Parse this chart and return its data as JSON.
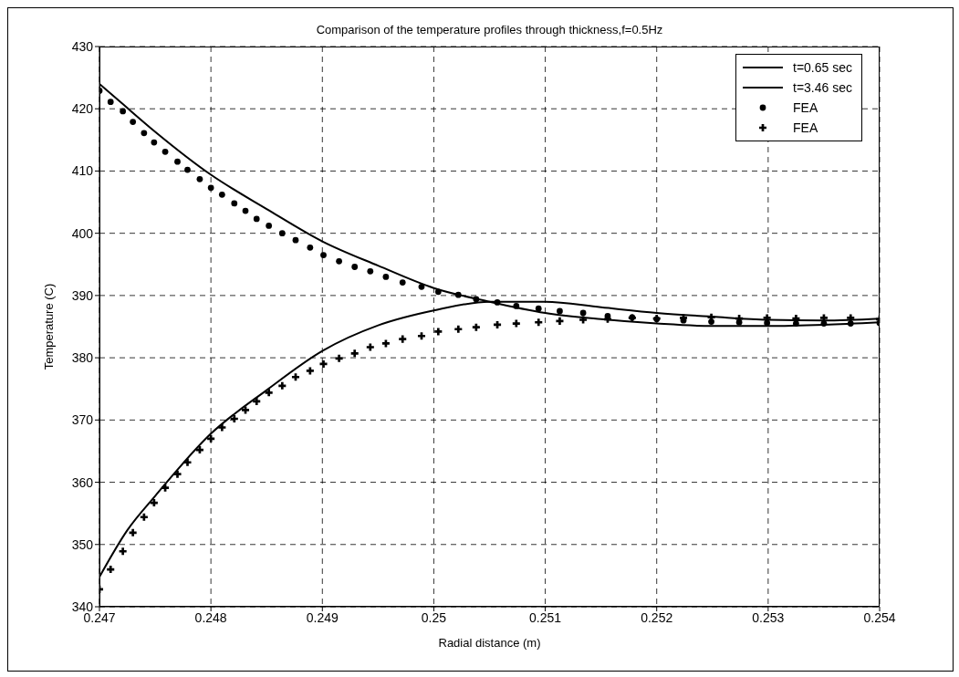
{
  "chart_data": {
    "type": "line",
    "title": "Comparison of the temperature profiles through thickness,f=0.5Hz",
    "xlabel": "Radial distance (m)",
    "ylabel": "Temperature (C)",
    "xlim": [
      0.247,
      0.254
    ],
    "xticks": [
      0.247,
      0.248,
      0.249,
      0.25,
      0.251,
      0.252,
      0.253,
      0.254
    ],
    "ylim": [
      340,
      430
    ],
    "yticks": [
      340,
      350,
      360,
      370,
      380,
      390,
      400,
      410,
      420,
      430
    ],
    "grid": true,
    "legend": "top right",
    "series": [
      {
        "name": "t=0.65 sec",
        "color": "#000000",
        "x": [
          0.247,
          0.2472,
          0.2475,
          0.248,
          0.2485,
          0.249,
          0.2495,
          0.25,
          0.2505,
          0.251,
          0.2515,
          0.252,
          0.2525,
          0.253,
          0.2535,
          0.254
        ],
        "values": [
          424,
          420.9,
          416.3,
          409.4,
          403.9,
          398.7,
          394.8,
          391.2,
          389,
          387.2,
          386.2,
          385.5,
          385.1,
          385.1,
          385.3,
          385.7
        ]
      },
      {
        "name": "t=3.46 sec",
        "color": "#000000",
        "x": [
          0.247,
          0.24725,
          0.2475,
          0.248,
          0.2485,
          0.249,
          0.2495,
          0.25,
          0.2505,
          0.251,
          0.2515,
          0.252,
          0.2525,
          0.253,
          0.2535,
          0.254
        ],
        "values": [
          344.8,
          352.3,
          357.8,
          367.8,
          374.8,
          381.1,
          385.2,
          387.6,
          389,
          389,
          388.1,
          387.2,
          386.6,
          386.1,
          386,
          386.3
        ]
      },
      {
        "name": "FEA",
        "type": "scatter",
        "marker": "circle",
        "color": "#000000",
        "x": [
          0.247,
          0.2471,
          0.24721,
          0.2473,
          0.2474,
          0.24749,
          0.24759,
          0.2477,
          0.24779,
          0.2479,
          0.248,
          0.2481,
          0.24821,
          0.24831,
          0.24841,
          0.24852,
          0.24864,
          0.24876,
          0.24889,
          0.24901,
          0.24915,
          0.24929,
          0.24943,
          0.24957,
          0.24972,
          0.24989,
          0.25004,
          0.25022,
          0.25038,
          0.25057,
          0.25074,
          0.25094,
          0.25113,
          0.25134,
          0.25156,
          0.25178,
          0.252,
          0.25224,
          0.25249,
          0.25274,
          0.25299,
          0.25325,
          0.2535,
          0.25374,
          0.254
        ],
        "values": [
          422.9,
          421.1,
          419.6,
          417.9,
          416.1,
          414.6,
          413.1,
          411.5,
          410.2,
          408.7,
          407.3,
          406.2,
          404.8,
          403.6,
          402.3,
          401.2,
          400,
          398.9,
          397.7,
          396.5,
          395.5,
          394.6,
          393.9,
          393,
          392.1,
          391.4,
          390.6,
          390.1,
          389.4,
          388.9,
          388.3,
          387.9,
          387.5,
          387.2,
          386.7,
          386.5,
          386.2,
          386,
          385.8,
          385.7,
          385.6,
          385.5,
          385.5,
          385.5,
          385.6
        ]
      },
      {
        "name": "FEA",
        "type": "scatter",
        "marker": "cross",
        "color": "#000000",
        "x": [
          0.247,
          0.2471,
          0.24721,
          0.2473,
          0.2474,
          0.24749,
          0.24759,
          0.2477,
          0.24779,
          0.2479,
          0.248,
          0.2481,
          0.24821,
          0.24831,
          0.24841,
          0.24852,
          0.24864,
          0.24876,
          0.24889,
          0.24901,
          0.24915,
          0.24929,
          0.24943,
          0.24957,
          0.24972,
          0.24989,
          0.25004,
          0.25022,
          0.25038,
          0.25057,
          0.25074,
          0.25094,
          0.25113,
          0.25134,
          0.25156,
          0.25178,
          0.252,
          0.25224,
          0.25249,
          0.25274,
          0.25299,
          0.25325,
          0.2535,
          0.25374,
          0.254
        ],
        "values": [
          342.8,
          346,
          348.9,
          351.9,
          354.4,
          356.7,
          359.1,
          361.3,
          363.2,
          365.2,
          367,
          368.8,
          370.2,
          371.6,
          373,
          374.4,
          375.5,
          376.9,
          377.9,
          379,
          379.9,
          380.7,
          381.7,
          382.3,
          383,
          383.5,
          384.2,
          384.6,
          384.9,
          385.3,
          385.5,
          385.7,
          385.9,
          386.1,
          386.2,
          386.4,
          386.3,
          386.4,
          386.5,
          386.3,
          386.4,
          386.3,
          386.4,
          386.4,
          386.2
        ]
      }
    ]
  }
}
